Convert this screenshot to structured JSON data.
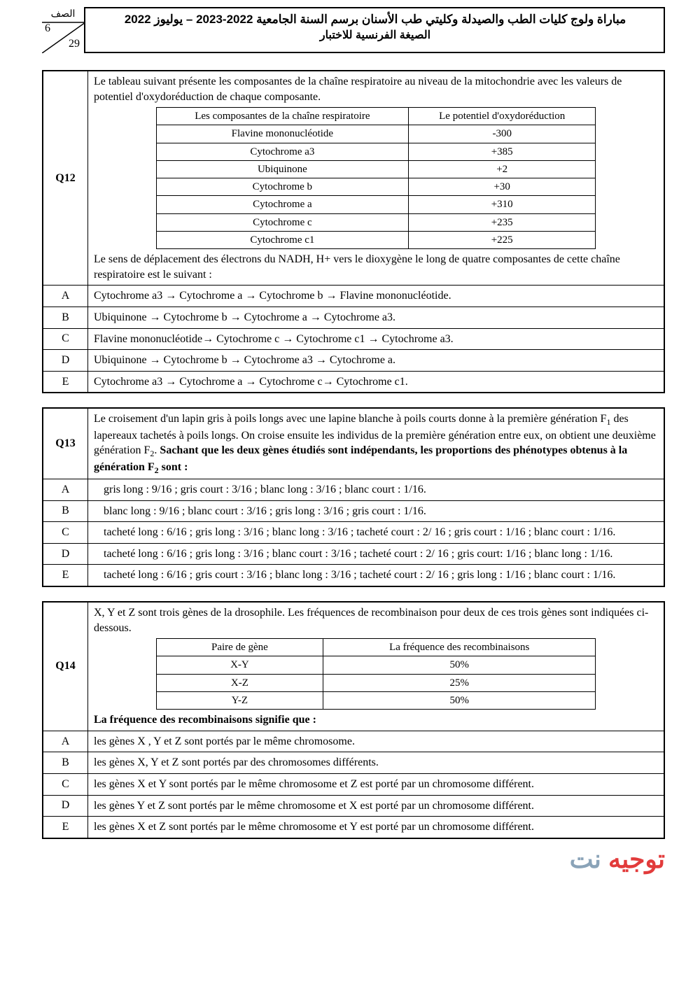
{
  "header": {
    "corner_label": "الصف",
    "page_top": "6",
    "page_bot": "29",
    "line1": "مباراة ولوج كليات الطب والصيدلة وكليتي طب الأسنان برسم السنة الجامعية 2022-2023 – يوليوز 2022",
    "line2": "الصيغة الفرنسية للاختبار"
  },
  "q12": {
    "id": "Q12",
    "intro": "Le tableau suivant présente les composantes de la chaîne respiratoire au niveau de la mitochondrie avec les valeurs de potentiel d'oxydoréduction de chaque composante.",
    "table": {
      "headers": [
        "Les composantes de la chaîne respiratoire",
        "Le potentiel d'oxydoréduction"
      ],
      "rows": [
        [
          "Flavine mononucléotide",
          "-300"
        ],
        [
          "Cytochrome a3",
          "+385"
        ],
        [
          "Ubiquinone",
          "+2"
        ],
        [
          "Cytochrome b",
          "+30"
        ],
        [
          "Cytochrome a",
          "+310"
        ],
        [
          "Cytochrome c",
          "+235"
        ],
        [
          "Cytochrome c1",
          "+225"
        ]
      ],
      "col_widths": [
        "auto",
        "auto"
      ]
    },
    "post": "Le sens de déplacement des électrons du NADH, H+ vers le dioxygène le long de quatre composantes de cette chaîne respiratoire est le suivant :",
    "options": {
      "A": "Cytochrome a3 → Cytochrome a → Cytochrome b → Flavine mononucléotide.",
      "B": "Ubiquinone → Cytochrome b → Cytochrome a → Cytochrome a3.",
      "C": "Flavine mononucléotide→ Cytochrome c → Cytochrome c1 → Cytochrome a3.",
      "D": "Ubiquinone → Cytochrome b → Cytochrome a3 → Cytochrome a.",
      "E": "Cytochrome a3 → Cytochrome a → Cytochrome c→ Cytochrome c1."
    }
  },
  "q13": {
    "id": "Q13",
    "intro_html": "Le croisement d'un lapin gris à poils longs avec une lapine blanche à poils courts donne à la première génération F<span class='sub'>1</span> des lapereaux tachetés à poils longs. On croise ensuite les individus de la première génération entre eux, on obtient une deuxième génération F<span class='sub'>2</span>. <b>Sachant que les deux gènes étudiés sont indépendants, les proportions des phénotypes obtenus à la génération F<span class='sub'>2</span> sont :</b>",
    "options": {
      "A": "gris long : 9/16 ; gris court : 3/16 ; blanc long : 3/16 ; blanc court : 1/16.",
      "B": "blanc long : 9/16 ; blanc court : 3/16 ; gris long : 3/16 ; gris court : 1/16.",
      "C": "tacheté long : 6/16 ; gris long : 3/16 ; blanc long : 3/16 ; tacheté court : 2/ 16 ; gris court : 1/16 ; blanc court : 1/16.",
      "D": "tacheté long : 6/16 ; gris long : 3/16 ; blanc court : 3/16 ; tacheté court : 2/ 16 ; gris court: 1/16 ; blanc long : 1/16.",
      "E": "tacheté long : 6/16 ; gris court : 3/16 ; blanc long : 3/16 ; tacheté court : 2/ 16 ; gris long : 1/16 ; blanc court : 1/16."
    }
  },
  "q14": {
    "id": "Q14",
    "intro": "X, Y et Z sont trois gènes de la drosophile. Les fréquences de recombinaison pour deux de ces trois gènes sont indiquées ci-dessous.",
    "table": {
      "headers": [
        "Paire de gène",
        "La fréquence des recombinaisons"
      ],
      "rows": [
        [
          "X-Y",
          "50%"
        ],
        [
          "X-Z",
          "25%"
        ],
        [
          "Y-Z",
          "50%"
        ]
      ]
    },
    "post_bold": "La fréquence des recombinaisons signifie que :",
    "options": {
      "A": "les gènes X , Y et Z sont portés par le même chromosome.",
      "B": "les gènes X, Y et Z sont portés par des chromosomes différents.",
      "C": "les gènes X et Y sont portés par le même chromosome et Z est porté par un chromosome différent.",
      "D": "les gènes Y et Z sont portés par le même chromosome et X est porté par un chromosome différent.",
      "E": "les gènes X et Z sont portés par le même chromosome et Y est porté par un chromosome différent."
    }
  },
  "watermark": {
    "part1": "توجيه",
    "part2": " نت"
  }
}
